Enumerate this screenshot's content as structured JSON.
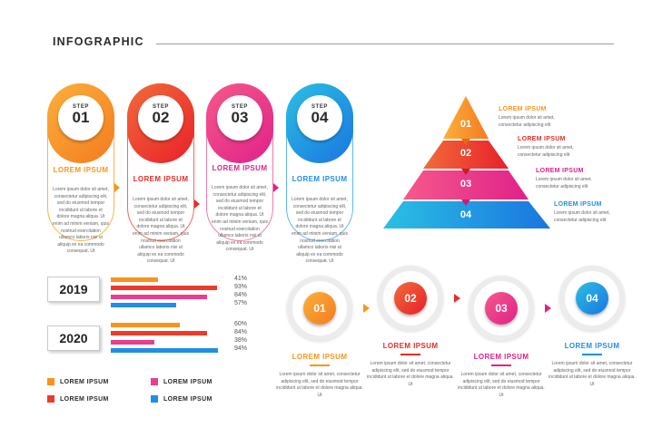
{
  "title": "INFOGRAPHIC",
  "colors": {
    "orange": "#f7941d",
    "red": "#ec3b2a",
    "pink": "#e83e8c",
    "blue": "#1f8fe6"
  },
  "steps": [
    {
      "label": "STEP",
      "num": "01",
      "heading": "LOREM IPSUM",
      "body": "Lorem ipsum dolor sit amet, consectetur adipiscing elit, sed do eiusmod tempor incididunt ut labore et dolore magna aliqua. Ut enim ad minim veniam, quis nostrud exercitation ullamco laboris nisi ut aliquip ex ea commodo consequat. Ut"
    },
    {
      "label": "STEP",
      "num": "02",
      "heading": "LOREM IPSUM",
      "body": "Lorem ipsum dolor sit amet, consectetur adipiscing elit, sed do eiusmod tempor incididunt ut labore et dolore magna aliqua. Ut enim ad minim veniam, quis nostrud exercitation ullamco laboris nisi ut aliquip ex ea commodo consequat. Ut"
    },
    {
      "label": "STEP",
      "num": "03",
      "heading": "LOREM IPSUM",
      "body": "Lorem ipsum dolor sit amet, consectetur adipiscing elit, sed do eiusmod tempor incididunt ut labore et dolore magna aliqua. Ut enim ad minim veniam, quis nostrud exercitation ullamco laboris nisi ut aliquip ex ea commodo consequat. Ut"
    },
    {
      "label": "STEP",
      "num": "04",
      "heading": "LOREM IPSUM",
      "body": "Lorem ipsum dolor sit amet, consectetur adipiscing elit, sed do eiusmod tempor incididunt ut labore et dolore magna aliqua. Ut enim ad minim veniam, quis nostrud exercitation ullamco laboris nisi ut aliquip ex ea commodo consequat. Ut"
    }
  ],
  "pyramid": [
    {
      "num": "01",
      "heading": "LOREM IPSUM",
      "body": "Lorem ipsum dolor sit amet, consectetur adipiscing elit"
    },
    {
      "num": "02",
      "heading": "LOREM IPSUM",
      "body": "Lorem ipsum dolor sit amet, consectetur adipiscing elit"
    },
    {
      "num": "03",
      "heading": "LOREM IPSUM",
      "body": "Lorem ipsum dolor sit amet, consectetur adipiscing elit"
    },
    {
      "num": "04",
      "heading": "LOREM IPSUM",
      "body": "Lorem ipsum dolor sit amet, consectetur adipiscing elit"
    }
  ],
  "chart_data": {
    "type": "bar",
    "groups": [
      {
        "year": "2019",
        "values": [
          41,
          93,
          84,
          57
        ],
        "labels": [
          "41%",
          "93%",
          "84%",
          "57%"
        ]
      },
      {
        "year": "2020",
        "values": [
          60,
          84,
          38,
          94
        ],
        "labels": [
          "60%",
          "84%",
          "38%",
          "94%"
        ]
      }
    ],
    "series_colors": [
      "#f7941d",
      "#ec3b2a",
      "#e83e8c",
      "#1f8fe6"
    ],
    "xlim": [
      0,
      100
    ]
  },
  "legend": [
    {
      "label": "LOREM IPSUM",
      "color": "#f7941d"
    },
    {
      "label": "LOREM IPSUM",
      "color": "#ec3b2a"
    },
    {
      "label": "LOREM IPSUM",
      "color": "#e83e8c"
    },
    {
      "label": "LOREM IPSUM",
      "color": "#1f8fe6"
    }
  ],
  "timeline": [
    {
      "num": "01",
      "heading": "LOREM IPSUM",
      "body": "Lorem ipsum dolor sit amet, consectetur adipiscing elit, sed do eiusmod tempor incididunt ut labore et dolore magna aliqua. Ut"
    },
    {
      "num": "02",
      "heading": "LOREM IPSUM",
      "body": "Lorem ipsum dolor sit amet, consectetur adipiscing elit, sed do eiusmod tempor incididunt ut labore et dolore magna aliqua. Ut"
    },
    {
      "num": "03",
      "heading": "LOREM IPSUM",
      "body": "Lorem ipsum dolor sit amet, consectetur adipiscing elit, sed do eiusmod tempor incididunt ut labore et dolore magna aliqua. Ut"
    },
    {
      "num": "04",
      "heading": "LOREM IPSUM",
      "body": "Lorem ipsum dolor sit amet, consectetur adipiscing elit, sed do eiusmod tempor incididunt ut labore et dolore magna aliqua. Ut"
    }
  ]
}
